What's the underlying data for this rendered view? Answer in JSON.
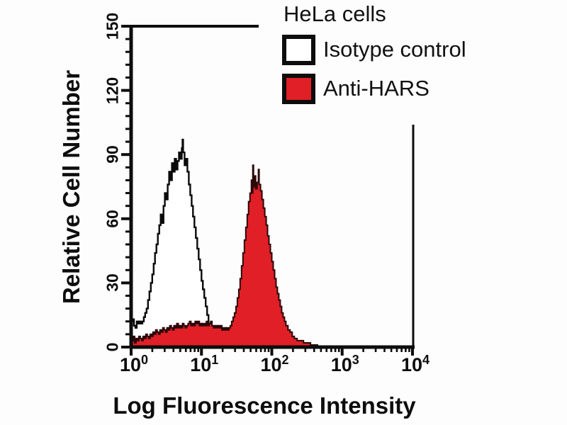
{
  "legend": {
    "title": "HeLa cells",
    "items": [
      {
        "label": "Isotype control",
        "fill": "#ffffff"
      },
      {
        "label": "Anti-HARS",
        "fill": "#e11f26"
      }
    ]
  },
  "chart_data": {
    "type": "area",
    "subtype": "flow-cytometry-histogram",
    "title": "HeLa cells",
    "xlabel": "Log Fluorescence Intensity",
    "ylabel": "Relative Cell Number",
    "x_scale": "log10",
    "x_range": [
      1,
      10000
    ],
    "y_range": [
      0,
      150
    ],
    "y_ticks": [
      0,
      30,
      60,
      90,
      120,
      150
    ],
    "y_minor_tick_step": 6,
    "x_tick_exponents": [
      0,
      1,
      2,
      3,
      4
    ],
    "x_minor_ticks_per_decade": [
      2,
      3,
      4,
      5,
      6,
      7,
      8,
      9
    ],
    "grid": false,
    "legend_position": "top-right",
    "colors": {
      "axis": "#0d0d0d",
      "isotype_outline": "#0a0a0a",
      "anti_hars_fill": "#e11f26",
      "anti_hars_outline": "#2b0708",
      "background": "#ffffff"
    },
    "series": [
      {
        "name": "Isotype control",
        "fill": "#ffffff",
        "stroke": "#0a0a0a",
        "stroke_width": 2.4,
        "peak": {
          "x_value": 5.4,
          "y_value": 97
        },
        "points_log_value": [
          [
            0.0,
            12
          ],
          [
            0.02,
            13
          ],
          [
            0.04,
            10
          ],
          [
            0.06,
            9
          ],
          [
            0.08,
            12
          ],
          [
            0.1,
            11
          ],
          [
            0.12,
            12
          ],
          [
            0.14,
            11
          ],
          [
            0.16,
            12
          ],
          [
            0.18,
            14
          ],
          [
            0.2,
            16
          ],
          [
            0.22,
            18
          ],
          [
            0.24,
            22
          ],
          [
            0.26,
            26
          ],
          [
            0.28,
            30
          ],
          [
            0.3,
            34
          ],
          [
            0.32,
            39
          ],
          [
            0.34,
            44
          ],
          [
            0.36,
            48
          ],
          [
            0.38,
            53
          ],
          [
            0.4,
            57
          ],
          [
            0.42,
            62
          ],
          [
            0.44,
            58
          ],
          [
            0.46,
            66
          ],
          [
            0.48,
            72
          ],
          [
            0.5,
            69
          ],
          [
            0.52,
            76
          ],
          [
            0.54,
            82
          ],
          [
            0.56,
            78
          ],
          [
            0.58,
            86
          ],
          [
            0.6,
            82
          ],
          [
            0.62,
            88
          ],
          [
            0.64,
            83
          ],
          [
            0.66,
            87
          ],
          [
            0.68,
            91
          ],
          [
            0.7,
            88
          ],
          [
            0.72,
            93
          ],
          [
            0.73,
            97
          ],
          [
            0.74,
            91
          ],
          [
            0.76,
            85
          ],
          [
            0.78,
            88
          ],
          [
            0.8,
            82
          ],
          [
            0.82,
            76
          ],
          [
            0.84,
            71
          ],
          [
            0.86,
            66
          ],
          [
            0.88,
            61
          ],
          [
            0.9,
            56
          ],
          [
            0.92,
            51
          ],
          [
            0.94,
            46
          ],
          [
            0.96,
            41
          ],
          [
            0.98,
            36
          ],
          [
            1.0,
            31
          ],
          [
            1.02,
            27
          ],
          [
            1.04,
            23
          ],
          [
            1.06,
            19
          ],
          [
            1.08,
            15
          ],
          [
            1.1,
            11
          ],
          [
            1.12,
            8
          ],
          [
            1.15,
            6
          ],
          [
            1.18,
            4
          ],
          [
            1.22,
            3
          ],
          [
            1.28,
            2
          ],
          [
            1.35,
            2
          ],
          [
            1.42,
            1
          ],
          [
            1.5,
            1
          ]
        ]
      },
      {
        "name": "Anti-HARS",
        "fill": "#e11f26",
        "stroke": "#2b0708",
        "stroke_width": 2,
        "peak": {
          "x_value": 55,
          "y_value": 85
        },
        "points_log_value": [
          [
            0.0,
            3
          ],
          [
            0.03,
            5
          ],
          [
            0.05,
            2
          ],
          [
            0.07,
            4
          ],
          [
            0.09,
            3
          ],
          [
            0.11,
            5
          ],
          [
            0.13,
            4
          ],
          [
            0.15,
            3
          ],
          [
            0.17,
            5
          ],
          [
            0.19,
            4
          ],
          [
            0.21,
            6
          ],
          [
            0.23,
            5
          ],
          [
            0.25,
            4
          ],
          [
            0.27,
            6
          ],
          [
            0.29,
            5
          ],
          [
            0.31,
            7
          ],
          [
            0.33,
            6
          ],
          [
            0.35,
            8
          ],
          [
            0.37,
            7
          ],
          [
            0.39,
            6
          ],
          [
            0.41,
            8
          ],
          [
            0.43,
            7
          ],
          [
            0.45,
            9
          ],
          [
            0.47,
            8
          ],
          [
            0.49,
            7
          ],
          [
            0.51,
            9
          ],
          [
            0.53,
            8
          ],
          [
            0.55,
            10
          ],
          [
            0.57,
            9
          ],
          [
            0.59,
            8
          ],
          [
            0.61,
            10
          ],
          [
            0.63,
            9
          ],
          [
            0.65,
            11
          ],
          [
            0.67,
            9
          ],
          [
            0.69,
            10
          ],
          [
            0.71,
            9
          ],
          [
            0.73,
            11
          ],
          [
            0.75,
            10
          ],
          [
            0.77,
            9
          ],
          [
            0.79,
            10
          ],
          [
            0.81,
            11
          ],
          [
            0.83,
            12
          ],
          [
            0.85,
            10
          ],
          [
            0.87,
            11
          ],
          [
            0.89,
            10
          ],
          [
            0.91,
            12
          ],
          [
            0.93,
            11
          ],
          [
            0.95,
            12
          ],
          [
            0.97,
            10
          ],
          [
            0.99,
            11
          ],
          [
            1.01,
            10
          ],
          [
            1.03,
            11
          ],
          [
            1.05,
            10
          ],
          [
            1.07,
            12
          ],
          [
            1.09,
            10
          ],
          [
            1.11,
            11
          ],
          [
            1.13,
            12
          ],
          [
            1.15,
            10
          ],
          [
            1.17,
            9
          ],
          [
            1.19,
            10
          ],
          [
            1.21,
            9
          ],
          [
            1.23,
            10
          ],
          [
            1.25,
            9
          ],
          [
            1.27,
            10
          ],
          [
            1.29,
            8
          ],
          [
            1.31,
            9
          ],
          [
            1.33,
            8
          ],
          [
            1.35,
            9
          ],
          [
            1.37,
            8
          ],
          [
            1.39,
            9
          ],
          [
            1.41,
            10
          ],
          [
            1.43,
            12
          ],
          [
            1.45,
            14
          ],
          [
            1.47,
            16
          ],
          [
            1.49,
            19
          ],
          [
            1.51,
            23
          ],
          [
            1.53,
            27
          ],
          [
            1.55,
            32
          ],
          [
            1.57,
            38
          ],
          [
            1.59,
            44
          ],
          [
            1.61,
            50
          ],
          [
            1.63,
            56
          ],
          [
            1.65,
            62
          ],
          [
            1.67,
            68
          ],
          [
            1.69,
            72
          ],
          [
            1.71,
            78
          ],
          [
            1.72,
            72
          ],
          [
            1.73,
            85
          ],
          [
            1.74,
            78
          ],
          [
            1.75,
            75
          ],
          [
            1.76,
            80
          ],
          [
            1.77,
            74
          ],
          [
            1.79,
            77
          ],
          [
            1.81,
            83
          ],
          [
            1.82,
            76
          ],
          [
            1.84,
            73
          ],
          [
            1.86,
            69
          ],
          [
            1.88,
            65
          ],
          [
            1.9,
            61
          ],
          [
            1.92,
            57
          ],
          [
            1.94,
            52
          ],
          [
            1.96,
            48
          ],
          [
            1.98,
            44
          ],
          [
            2.0,
            40
          ],
          [
            2.02,
            36
          ],
          [
            2.04,
            32
          ],
          [
            2.06,
            28
          ],
          [
            2.08,
            25
          ],
          [
            2.1,
            22
          ],
          [
            2.12,
            19
          ],
          [
            2.14,
            16
          ],
          [
            2.16,
            14
          ],
          [
            2.18,
            12
          ],
          [
            2.2,
            10
          ],
          [
            2.23,
            8
          ],
          [
            2.26,
            7
          ],
          [
            2.29,
            5
          ],
          [
            2.32,
            4
          ],
          [
            2.36,
            3
          ],
          [
            2.4,
            3
          ],
          [
            2.45,
            2
          ],
          [
            2.5,
            2
          ],
          [
            2.55,
            1
          ],
          [
            2.6,
            1
          ],
          [
            2.65,
            0
          ]
        ]
      }
    ]
  }
}
